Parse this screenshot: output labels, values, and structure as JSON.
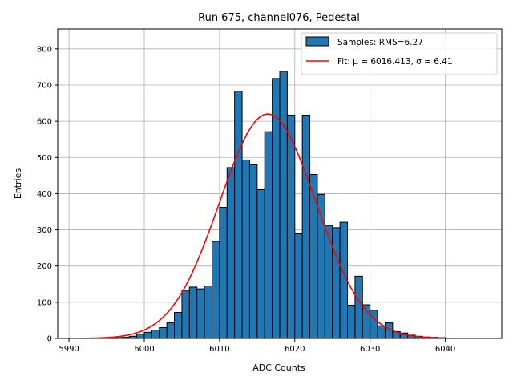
{
  "chart_data": {
    "type": "bar",
    "title": "Run 675, channel076, Pedestal",
    "xlabel": "ADC Counts",
    "ylabel": "Entries",
    "xlim": [
      5988.5,
      6047.5
    ],
    "ylim": [
      0,
      855
    ],
    "xticks": [
      5990,
      6000,
      6010,
      6020,
      6030,
      6040
    ],
    "yticks": [
      0,
      100,
      200,
      300,
      400,
      500,
      600,
      700,
      800
    ],
    "grid": true,
    "legend_position": "top-right",
    "bar_color": "#1f77b4",
    "fit_color": "#ff0000",
    "histogram": {
      "name": "Samples: RMS=6.27",
      "bin_start": 5994,
      "bin_width": 1,
      "counts": [
        1,
        1,
        2,
        3,
        6,
        12,
        17,
        23,
        30,
        43,
        72,
        133,
        142,
        137,
        145,
        268,
        362,
        472,
        683,
        493,
        480,
        411,
        571,
        718,
        738,
        617,
        289,
        617,
        453,
        398,
        312,
        306,
        321,
        92,
        172,
        93,
        78,
        35,
        43,
        19,
        15,
        9,
        6,
        4,
        3,
        2,
        1
      ]
    },
    "fit": {
      "name": "Fit: μ = 6016.413, σ = 6.41",
      "mu": 6016.413,
      "sigma": 6.41,
      "amplitude": 620,
      "x_range": [
        5992,
        6040
      ]
    }
  }
}
